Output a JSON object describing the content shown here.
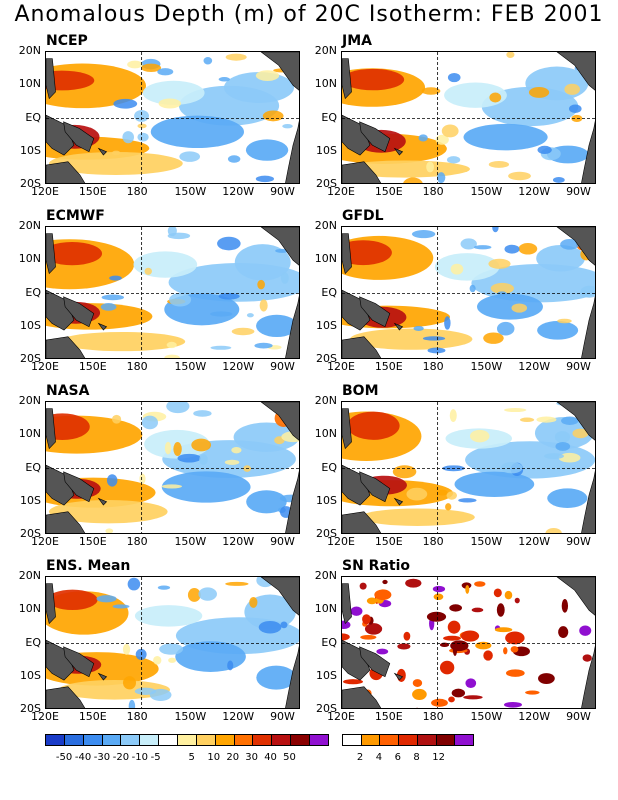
{
  "title": "Anomalous Depth (m) of 20C Isotherm: FEB 2001",
  "panels": [
    {
      "id": "ncep",
      "label": "NCEP"
    },
    {
      "id": "jma",
      "label": "JMA"
    },
    {
      "id": "ecmwf",
      "label": "ECMWF"
    },
    {
      "id": "gfdl",
      "label": "GFDL"
    },
    {
      "id": "nasa",
      "label": "NASA"
    },
    {
      "id": "bom",
      "label": "BOM"
    },
    {
      "id": "ens",
      "label": "ENS. Mean"
    },
    {
      "id": "sn",
      "label": "SN Ratio"
    }
  ],
  "axes": {
    "lat_labels": [
      "20N",
      "10N",
      "EQ",
      "10S",
      "20S"
    ],
    "lon_labels": [
      "120E",
      "150E",
      "180",
      "150W",
      "120W",
      "90W"
    ]
  },
  "anomaly_colorbar": {
    "colors": [
      "#1a3cc8",
      "#2a6ee0",
      "#3c8cf0",
      "#5aaaf5",
      "#8ccaf8",
      "#c8eefa",
      "#ffffff",
      "#fff0a0",
      "#ffd060",
      "#ffa500",
      "#ff7000",
      "#e03000",
      "#b81010",
      "#8a0000",
      "#9010d0"
    ],
    "labels": [
      "-50",
      "-40",
      "-30",
      "-20",
      "-10",
      "-5",
      "5",
      "10",
      "20",
      "30",
      "40",
      "50"
    ]
  },
  "sn_colorbar": {
    "colors": [
      "#ffffff",
      "#ff9a00",
      "#ff6000",
      "#e02800",
      "#b01010",
      "#800000",
      "#9010d0"
    ],
    "labels": [
      "2",
      "4",
      "6",
      "8",
      "12"
    ]
  }
}
